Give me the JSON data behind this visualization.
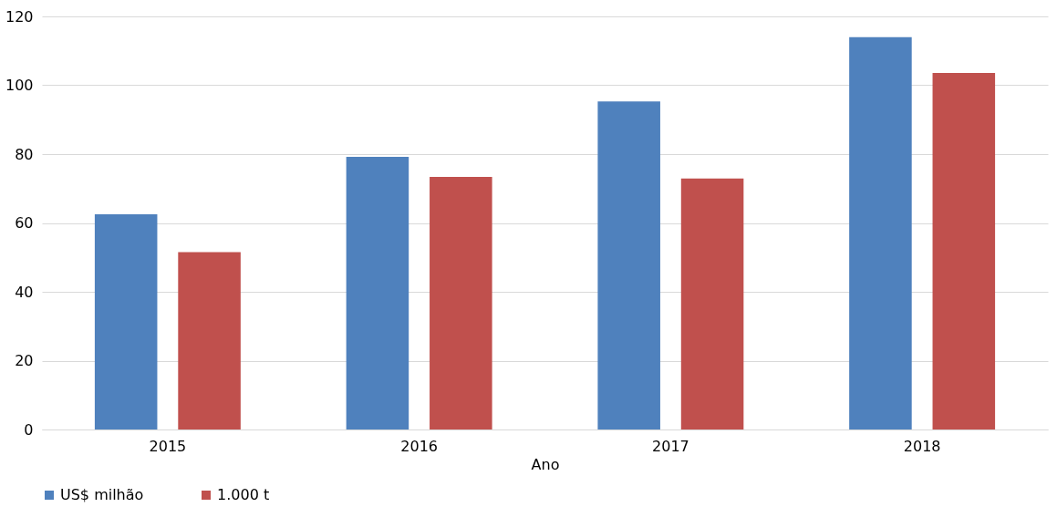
{
  "chart_data": {
    "type": "bar",
    "xlabel": "Ano",
    "categories": [
      "2015",
      "2016",
      "2017",
      "2018"
    ],
    "series": [
      {
        "name": "US$ milhão",
        "color": "#4f81bd",
        "values": [
          62.5,
          79.2,
          95.3,
          114.0
        ]
      },
      {
        "name": "1.000 t",
        "color": "#c0504d",
        "values": [
          51.5,
          73.4,
          72.9,
          103.6
        ]
      }
    ],
    "ylim": [
      0,
      120
    ],
    "yticks": [
      0,
      20,
      40,
      60,
      80,
      100,
      120
    ],
    "grid": "y",
    "legend": "bottom"
  }
}
